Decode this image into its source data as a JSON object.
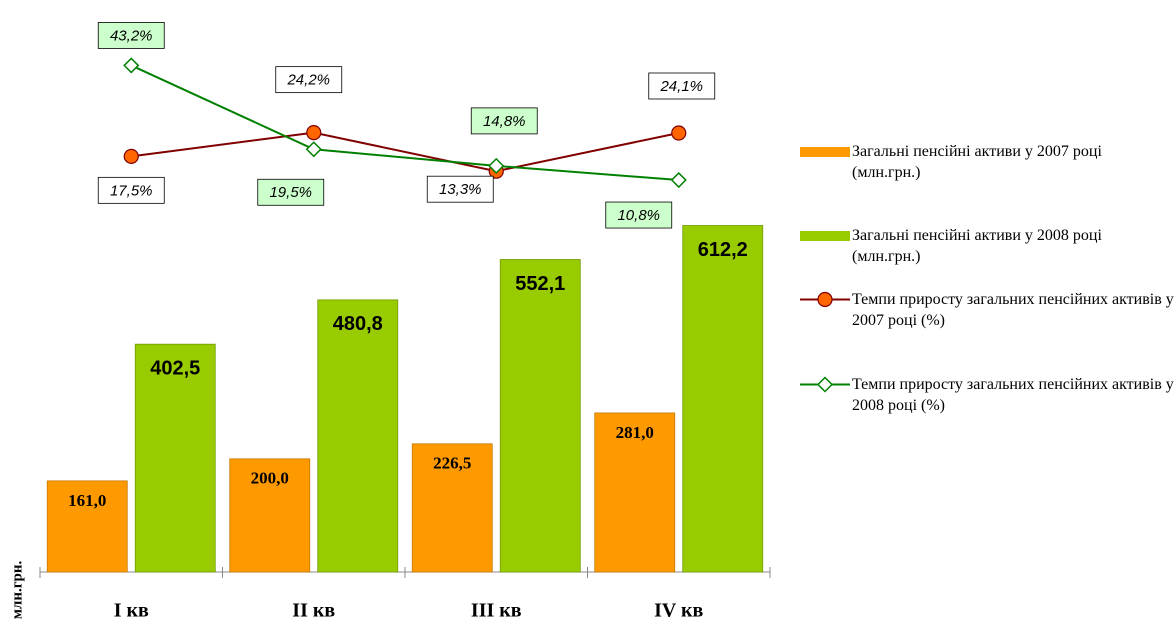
{
  "chart_data": {
    "type": "combo",
    "y_axis_label": "млн.грн.",
    "categories": [
      "I кв",
      "II кв",
      "III кв",
      "IV кв"
    ],
    "ylim": [
      0,
      1000
    ],
    "y2lim": [
      -100,
      60
    ],
    "series": [
      {
        "name": "Загальні пенсійні активи у 2007 році (млн.грн.)",
        "type": "bar",
        "color": "#ff9900",
        "values": [
          161.0,
          200.0,
          226.5,
          281.0
        ],
        "value_labels": [
          "161,0",
          "200,0",
          "226,5",
          "281,0"
        ]
      },
      {
        "name": "Загальні пенсійні активи у 2008 році (млн.грн.)",
        "type": "bar",
        "color": "#99cc00",
        "values": [
          402.5,
          480.8,
          552.1,
          612.2
        ],
        "value_labels": [
          "402,5",
          "480,8",
          "552,1",
          "612,2"
        ]
      },
      {
        "name": "Темпи приросту загальних пенсійних активів у  2007 році (%)",
        "type": "line",
        "axis": "y2",
        "color": "#800000",
        "marker": "circle",
        "marker_color": "#ff6600",
        "label_fill": "#ffffff",
        "values": [
          17.5,
          24.2,
          13.3,
          24.1
        ],
        "value_labels": [
          "17,5%",
          "24,2%",
          "13,3%",
          "24,1%"
        ]
      },
      {
        "name": "Темпи приросту загальних пенсійних активів у 2008 році (%)",
        "type": "line",
        "axis": "y2",
        "color": "#008000",
        "marker": "diamond",
        "marker_color": "#ffffff",
        "label_fill": "#ccffcc",
        "values": [
          43.2,
          19.5,
          14.8,
          10.8
        ],
        "value_labels": [
          "43,2%",
          "19,5%",
          "14,8%",
          "10,8%"
        ]
      }
    ]
  }
}
